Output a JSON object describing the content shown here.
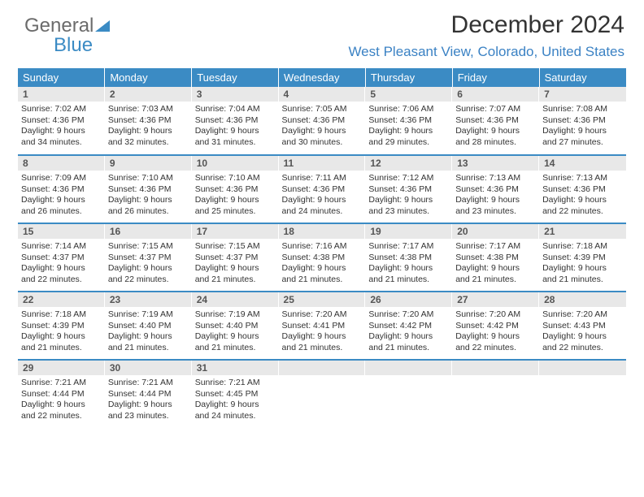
{
  "logo": {
    "text_gray": "General",
    "text_blue": "Blue",
    "tri_color": "#3b8bc4"
  },
  "header": {
    "title": "December 2024",
    "subtitle": "West Pleasant View, Colorado, United States"
  },
  "colors": {
    "header_bg": "#3b8bc4",
    "daynum_bg": "#e8e8e8",
    "row_border": "#3b8bc4",
    "subtitle": "#3b82c4",
    "text": "#333333"
  },
  "weekdays": [
    "Sunday",
    "Monday",
    "Tuesday",
    "Wednesday",
    "Thursday",
    "Friday",
    "Saturday"
  ],
  "weeks": [
    [
      {
        "n": "1",
        "sr": "7:02 AM",
        "ss": "4:36 PM",
        "dl": "9 hours and 34 minutes."
      },
      {
        "n": "2",
        "sr": "7:03 AM",
        "ss": "4:36 PM",
        "dl": "9 hours and 32 minutes."
      },
      {
        "n": "3",
        "sr": "7:04 AM",
        "ss": "4:36 PM",
        "dl": "9 hours and 31 minutes."
      },
      {
        "n": "4",
        "sr": "7:05 AM",
        "ss": "4:36 PM",
        "dl": "9 hours and 30 minutes."
      },
      {
        "n": "5",
        "sr": "7:06 AM",
        "ss": "4:36 PM",
        "dl": "9 hours and 29 minutes."
      },
      {
        "n": "6",
        "sr": "7:07 AM",
        "ss": "4:36 PM",
        "dl": "9 hours and 28 minutes."
      },
      {
        "n": "7",
        "sr": "7:08 AM",
        "ss": "4:36 PM",
        "dl": "9 hours and 27 minutes."
      }
    ],
    [
      {
        "n": "8",
        "sr": "7:09 AM",
        "ss": "4:36 PM",
        "dl": "9 hours and 26 minutes."
      },
      {
        "n": "9",
        "sr": "7:10 AM",
        "ss": "4:36 PM",
        "dl": "9 hours and 26 minutes."
      },
      {
        "n": "10",
        "sr": "7:10 AM",
        "ss": "4:36 PM",
        "dl": "9 hours and 25 minutes."
      },
      {
        "n": "11",
        "sr": "7:11 AM",
        "ss": "4:36 PM",
        "dl": "9 hours and 24 minutes."
      },
      {
        "n": "12",
        "sr": "7:12 AM",
        "ss": "4:36 PM",
        "dl": "9 hours and 23 minutes."
      },
      {
        "n": "13",
        "sr": "7:13 AM",
        "ss": "4:36 PM",
        "dl": "9 hours and 23 minutes."
      },
      {
        "n": "14",
        "sr": "7:13 AM",
        "ss": "4:36 PM",
        "dl": "9 hours and 22 minutes."
      }
    ],
    [
      {
        "n": "15",
        "sr": "7:14 AM",
        "ss": "4:37 PM",
        "dl": "9 hours and 22 minutes."
      },
      {
        "n": "16",
        "sr": "7:15 AM",
        "ss": "4:37 PM",
        "dl": "9 hours and 22 minutes."
      },
      {
        "n": "17",
        "sr": "7:15 AM",
        "ss": "4:37 PM",
        "dl": "9 hours and 21 minutes."
      },
      {
        "n": "18",
        "sr": "7:16 AM",
        "ss": "4:38 PM",
        "dl": "9 hours and 21 minutes."
      },
      {
        "n": "19",
        "sr": "7:17 AM",
        "ss": "4:38 PM",
        "dl": "9 hours and 21 minutes."
      },
      {
        "n": "20",
        "sr": "7:17 AM",
        "ss": "4:38 PM",
        "dl": "9 hours and 21 minutes."
      },
      {
        "n": "21",
        "sr": "7:18 AM",
        "ss": "4:39 PM",
        "dl": "9 hours and 21 minutes."
      }
    ],
    [
      {
        "n": "22",
        "sr": "7:18 AM",
        "ss": "4:39 PM",
        "dl": "9 hours and 21 minutes."
      },
      {
        "n": "23",
        "sr": "7:19 AM",
        "ss": "4:40 PM",
        "dl": "9 hours and 21 minutes."
      },
      {
        "n": "24",
        "sr": "7:19 AM",
        "ss": "4:40 PM",
        "dl": "9 hours and 21 minutes."
      },
      {
        "n": "25",
        "sr": "7:20 AM",
        "ss": "4:41 PM",
        "dl": "9 hours and 21 minutes."
      },
      {
        "n": "26",
        "sr": "7:20 AM",
        "ss": "4:42 PM",
        "dl": "9 hours and 21 minutes."
      },
      {
        "n": "27",
        "sr": "7:20 AM",
        "ss": "4:42 PM",
        "dl": "9 hours and 22 minutes."
      },
      {
        "n": "28",
        "sr": "7:20 AM",
        "ss": "4:43 PM",
        "dl": "9 hours and 22 minutes."
      }
    ],
    [
      {
        "n": "29",
        "sr": "7:21 AM",
        "ss": "4:44 PM",
        "dl": "9 hours and 22 minutes."
      },
      {
        "n": "30",
        "sr": "7:21 AM",
        "ss": "4:44 PM",
        "dl": "9 hours and 23 minutes."
      },
      {
        "n": "31",
        "sr": "7:21 AM",
        "ss": "4:45 PM",
        "dl": "9 hours and 24 minutes."
      },
      null,
      null,
      null,
      null
    ]
  ],
  "labels": {
    "sunrise": "Sunrise: ",
    "sunset": "Sunset: ",
    "daylight": "Daylight: "
  }
}
